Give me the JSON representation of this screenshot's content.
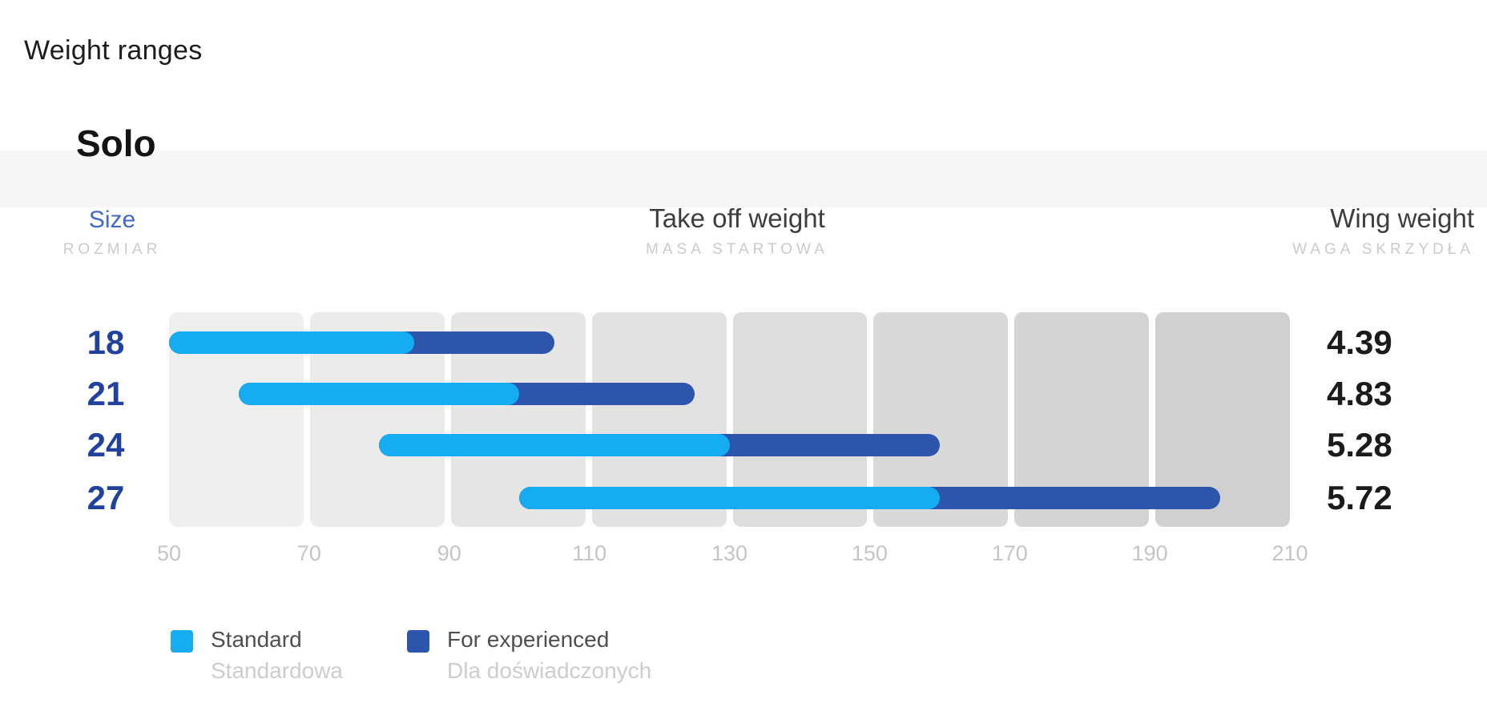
{
  "title": "Weight ranges",
  "section": "Solo",
  "headers": {
    "size": {
      "en": "Size",
      "pl": "ROZMIAR"
    },
    "takeoff": {
      "en": "Take off weight",
      "pl": "MASA STARTOWA"
    },
    "wing": {
      "en": "Wing weight",
      "pl": "WAGA SKRZYDŁA"
    }
  },
  "legend": {
    "standard": {
      "en": "Standard",
      "pl": "Standardowa"
    },
    "experienced": {
      "en": "For experienced",
      "pl": "Dla doświadczonych"
    }
  },
  "colors": {
    "standard_bar": "#15acf2",
    "experienced_bar": "#2c55ab",
    "size_label": "#20429e",
    "size_header_accent": "#4169c8",
    "block_grays": [
      "#efefef",
      "#ebebeb",
      "#e6e6e6",
      "#e2e2e2",
      "#dddddd",
      "#d9d9d9",
      "#d4d4d4",
      "#d0d0d0"
    ],
    "band": "#f6f6f7",
    "axis_text": "#c5c5c5"
  },
  "chart_data": {
    "type": "bar",
    "subtype": "horizontal-range-bars",
    "title": "Weight ranges — Solo",
    "xlabel": "Take off weight (kg)",
    "ylabel": "Size",
    "xlim": [
      50,
      210
    ],
    "xticks": [
      50,
      70,
      90,
      110,
      130,
      150,
      170,
      190,
      210
    ],
    "grid_blocks": 8,
    "legend_position": "bottom-left",
    "series_names": [
      "Standard",
      "For experienced"
    ],
    "rows": [
      {
        "size": "18",
        "standard_range": [
          50,
          85
        ],
        "experienced_range": [
          85,
          105
        ],
        "wing_weight": "4.39"
      },
      {
        "size": "21",
        "standard_range": [
          60,
          100
        ],
        "experienced_range": [
          100,
          125
        ],
        "wing_weight": "4.83"
      },
      {
        "size": "24",
        "standard_range": [
          80,
          130
        ],
        "experienced_range": [
          130,
          160
        ],
        "wing_weight": "5.28"
      },
      {
        "size": "27",
        "standard_range": [
          100,
          160
        ],
        "experienced_range": [
          160,
          200
        ],
        "wing_weight": "5.72"
      }
    ]
  }
}
